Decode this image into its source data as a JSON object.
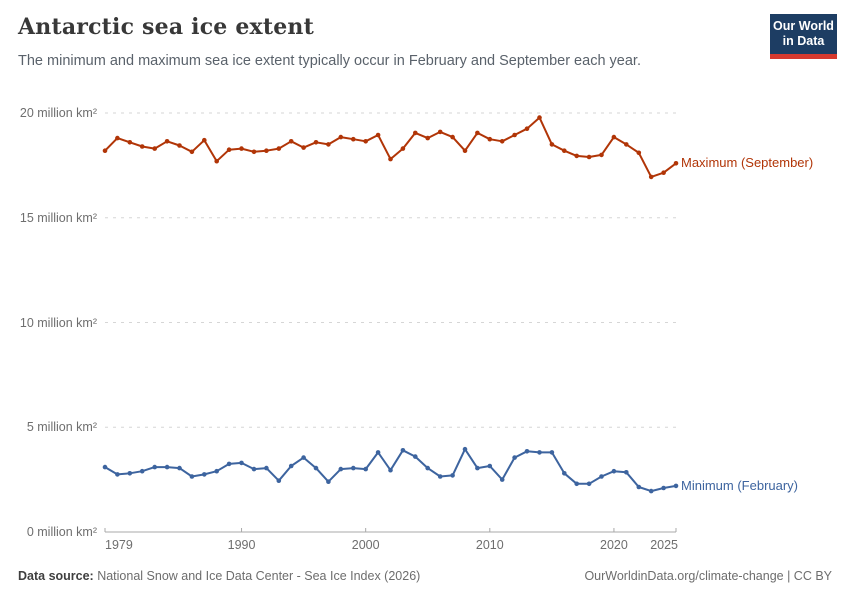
{
  "header": {
    "title": "Antarctic sea ice extent",
    "subtitle": "The minimum and maximum sea ice extent typically occur in February and September each year.",
    "logo": {
      "line1": "Our World",
      "line2": "in Data"
    }
  },
  "footer": {
    "source_label": "Data source:",
    "source_text": " National Snow and Ice Data Center - Sea Ice Index (2026)",
    "license_text": "OurWorldinData.org/climate-change | CC BY"
  },
  "colors": {
    "maximum_series": "#B13507",
    "minimum_series": "#3D649F",
    "gridline": "#d6d6d6",
    "axis": "#a8a8a8",
    "tick_text": "#6e6e6e",
    "logo_bg": "#1d3d63",
    "logo_bar": "#d6392e"
  },
  "chart_data": {
    "type": "line",
    "title": "Antarctic sea ice extent",
    "xlabel": "",
    "ylabel": "million km²",
    "xlim": [
      1979,
      2025
    ],
    "ylim": [
      0,
      20.5
    ],
    "grid": "dashed horizontal",
    "legend_position": "line-end labels",
    "x_ticks": [
      1979,
      1990,
      2000,
      2010,
      2020,
      2025
    ],
    "y_ticks": [
      {
        "value": 20,
        "label": "20 million km²"
      },
      {
        "value": 15,
        "label": "15 million km²"
      },
      {
        "value": 10,
        "label": "10 million km²"
      },
      {
        "value": 5,
        "label": "5 million km²"
      },
      {
        "value": 0,
        "label": "0 million km²"
      }
    ],
    "x": [
      1979,
      1980,
      1981,
      1982,
      1983,
      1984,
      1985,
      1986,
      1987,
      1988,
      1989,
      1990,
      1991,
      1992,
      1993,
      1994,
      1995,
      1996,
      1997,
      1998,
      1999,
      2000,
      2001,
      2002,
      2003,
      2004,
      2005,
      2006,
      2007,
      2008,
      2009,
      2010,
      2011,
      2012,
      2013,
      2014,
      2015,
      2016,
      2017,
      2018,
      2019,
      2020,
      2021,
      2022,
      2023,
      2024,
      2025
    ],
    "series": [
      {
        "name": "Maximum (September)",
        "color": "#B13507",
        "values": [
          18.2,
          18.8,
          18.6,
          18.4,
          18.3,
          18.65,
          18.45,
          18.15,
          18.7,
          17.7,
          18.25,
          18.3,
          18.15,
          18.2,
          18.3,
          18.65,
          18.35,
          18.6,
          18.5,
          18.85,
          18.75,
          18.65,
          18.95,
          17.8,
          18.3,
          19.05,
          18.8,
          19.1,
          18.85,
          18.2,
          19.05,
          18.75,
          18.65,
          18.95,
          19.25,
          19.78,
          18.5,
          18.2,
          17.95,
          17.9,
          18.0,
          18.85,
          18.5,
          18.1,
          16.95,
          17.15,
          17.6
        ]
      },
      {
        "name": "Minimum (February)",
        "color": "#3D649F",
        "values": [
          3.1,
          2.75,
          2.8,
          2.9,
          3.1,
          3.1,
          3.05,
          2.65,
          2.75,
          2.9,
          3.25,
          3.3,
          3.0,
          3.05,
          2.45,
          3.15,
          3.55,
          3.05,
          2.4,
          3.0,
          3.05,
          3.0,
          3.8,
          2.95,
          3.9,
          3.6,
          3.05,
          2.65,
          2.7,
          3.95,
          3.05,
          3.15,
          2.5,
          3.55,
          3.85,
          3.8,
          3.8,
          2.8,
          2.3,
          2.3,
          2.65,
          2.9,
          2.85,
          2.15,
          1.95,
          2.1,
          2.2
        ]
      }
    ]
  }
}
